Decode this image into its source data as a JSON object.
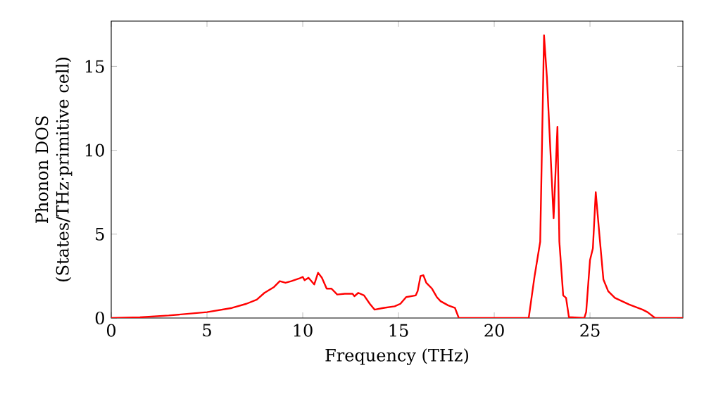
{
  "chart_data": {
    "type": "line",
    "xlabel": "Frequency (THz)",
    "ylabel": "Phonon DOS (States/THz·primitive cell)",
    "xlim": [
      0,
      29.85
    ],
    "ylim": [
      0,
      17.7
    ],
    "xticks": [
      0,
      5,
      10,
      15,
      20,
      25
    ],
    "yticks": [
      0,
      5,
      10,
      15
    ],
    "grid": false,
    "legend": false,
    "series": [
      {
        "color": "#ff0000",
        "x": [
          0,
          1.5,
          3,
          5,
          6.3,
          7.06,
          7.6,
          8.0,
          8.5,
          8.8,
          9.1,
          9.4,
          9.8,
          10.0,
          10.1,
          10.3,
          10.6,
          10.8,
          11.0,
          11.25,
          11.5,
          11.8,
          12.2,
          12.6,
          12.7,
          12.9,
          13.2,
          13.5,
          13.75,
          14.2,
          14.8,
          15.1,
          15.4,
          15.9,
          16.0,
          16.15,
          16.3,
          16.45,
          16.75,
          17.0,
          17.2,
          17.6,
          17.95,
          18.15,
          21.8,
          22.1,
          22.4,
          22.6,
          22.75,
          23.1,
          23.3,
          23.4,
          23.6,
          23.75,
          23.9,
          24.7,
          24.8,
          25.0,
          25.15,
          25.3,
          25.5,
          25.7,
          25.95,
          26.3,
          27.05,
          27.75,
          28.0,
          28.4,
          29.85
        ],
        "values": [
          0,
          0.04,
          0.15,
          0.35,
          0.6,
          0.85,
          1.1,
          1.5,
          1.85,
          2.2,
          2.1,
          2.2,
          2.35,
          2.45,
          2.25,
          2.4,
          2.0,
          2.7,
          2.4,
          1.75,
          1.75,
          1.4,
          1.45,
          1.45,
          1.3,
          1.5,
          1.35,
          0.85,
          0.5,
          0.6,
          0.7,
          0.85,
          1.25,
          1.35,
          1.6,
          2.5,
          2.55,
          2.1,
          1.75,
          1.25,
          1.0,
          0.75,
          0.6,
          0,
          0,
          2.45,
          4.55,
          16.85,
          14.35,
          5.95,
          11.4,
          4.55,
          1.35,
          1.2,
          0.05,
          0,
          0.35,
          3.45,
          4.15,
          7.5,
          4.85,
          2.3,
          1.6,
          1.2,
          0.8,
          0.5,
          0.35,
          0,
          0
        ]
      }
    ]
  }
}
